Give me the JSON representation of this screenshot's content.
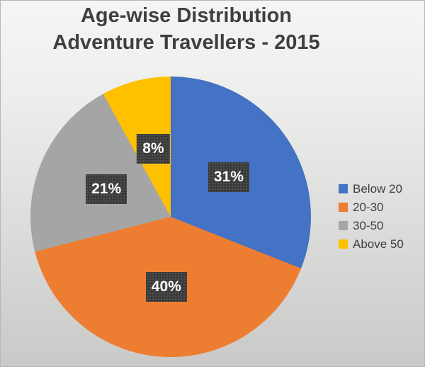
{
  "page": {
    "background_top": "#f5f5f4",
    "background_bottom": "#c9c9c8",
    "border_color": "#b7b7b6"
  },
  "chart_data": {
    "type": "pie",
    "title": "Age-wise Distribution Adventure Travellers - 2015",
    "title_lines": [
      "Age-wise Distribution",
      "Adventure Travellers - 2015"
    ],
    "title_color": "#3f3f3f",
    "categories": [
      "Below 20",
      "20-30",
      "30-50",
      "Above 50"
    ],
    "values": [
      31,
      40,
      21,
      8
    ],
    "labels": [
      "31%",
      "40%",
      "21%",
      "8%"
    ],
    "colors": [
      "#4472C4",
      "#ED7D31",
      "#A5A5A5",
      "#FFC000"
    ],
    "start_angle_deg": 0,
    "direction": "clockwise",
    "legend_position": "right",
    "legend_text_color": "#3f3f3f",
    "label_box": {
      "background": "#3a3a3a",
      "dot_color": "#5d5d5d",
      "text_color": "#ffffff"
    }
  }
}
